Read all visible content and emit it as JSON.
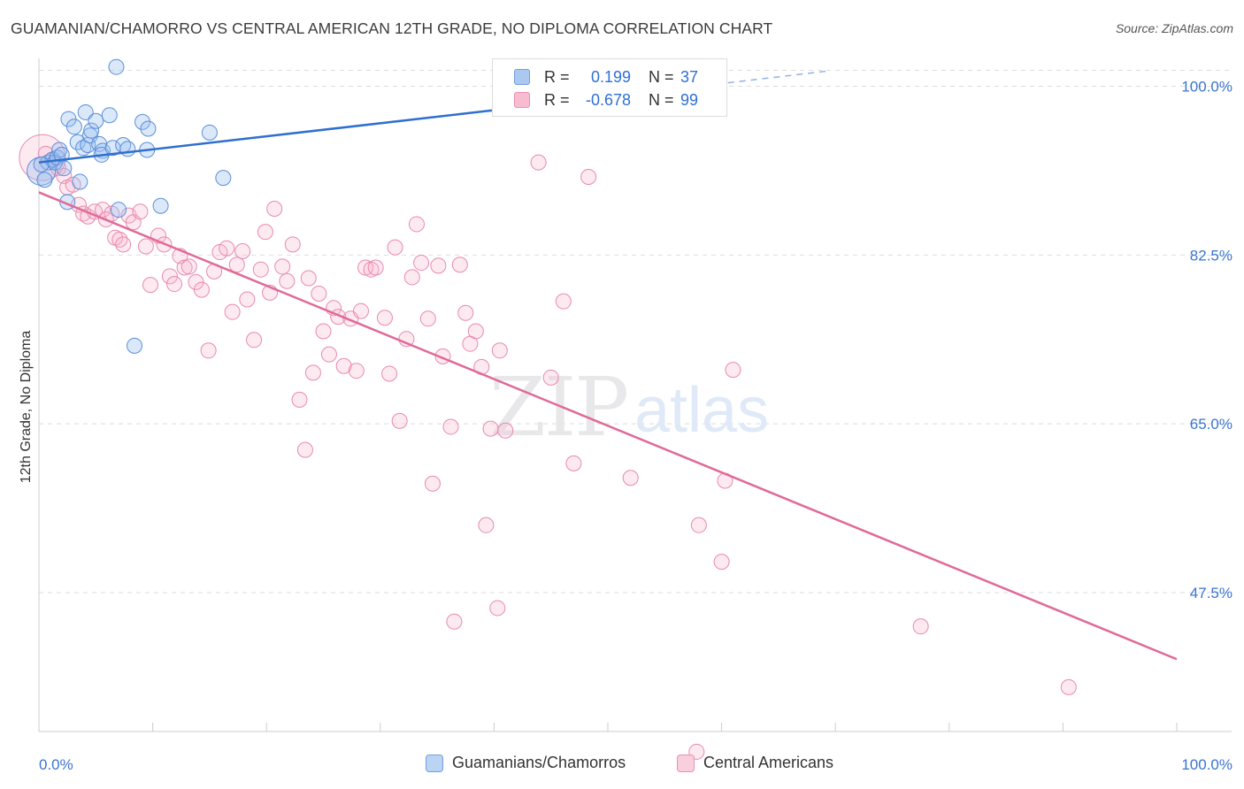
{
  "title": "GUAMANIAN/CHAMORRO VS CENTRAL AMERICAN 12TH GRADE, NO DIPLOMA CORRELATION CHART",
  "source": "Source: ZipAtlas.com",
  "watermark": {
    "zip": "ZIP",
    "atlas": "atlas"
  },
  "legend": {
    "rows": [
      {
        "r_label": "R =",
        "r_value": "0.199",
        "n_label": "N =",
        "n_value": "37",
        "color": "#aac8f0",
        "border": "#6f9fe0"
      },
      {
        "r_label": "R =",
        "r_value": "-0.678",
        "n_label": "N =",
        "n_value": "99",
        "color": "#f7bcd0",
        "border": "#ec8fb0"
      }
    ]
  },
  "bottom_legend": [
    {
      "label": "Guamanians/Chamorros",
      "color": "#bcd4f4",
      "border": "#6f9fe0"
    },
    {
      "label": "Central Americans",
      "color": "#f9cfde",
      "border": "#ec8fb0"
    }
  ],
  "colors": {
    "blue_fill": "rgba(150,190,240,0.35)",
    "blue_stroke": "#5b8fd8",
    "blue_line": "#2f6fcf",
    "pink_fill": "rgba(247,180,204,0.28)",
    "pink_stroke": "#e889ad",
    "pink_line": "#e06a98",
    "axis_label": "#3a74d0",
    "grid": "#dddddd"
  },
  "chart_data": {
    "type": "scatter",
    "title": "GUAMANIAN/CHAMORRO VS CENTRAL AMERICAN 12TH GRADE, NO DIPLOMA CORRELATION CHART",
    "xlabel": "",
    "ylabel": "12th Grade, No Diploma",
    "xlim": [
      0,
      100
    ],
    "ylim": [
      31,
      102
    ],
    "x_tick_labels": [
      "0.0%",
      "100.0%"
    ],
    "y_ticks": [
      100.0,
      82.5,
      65.0,
      47.5
    ],
    "y_tick_labels": [
      "100.0%",
      "82.5%",
      "65.0%",
      "47.5%"
    ],
    "grid": true,
    "legend_placement": "top-center",
    "series": [
      {
        "name": "Guamanians/Chamorros",
        "R": 0.199,
        "N": 37,
        "trend": {
          "x": [
            0,
            46.5
          ],
          "y": [
            92.1,
            98.4
          ],
          "dashed_to": [
            69.5,
            101.6
          ]
        },
        "points": [
          [
            0.5,
            90.3
          ],
          [
            0.8,
            92.1
          ],
          [
            1.2,
            92.4
          ],
          [
            1.4,
            92.1
          ],
          [
            1.6,
            92.6
          ],
          [
            1.8,
            93.4
          ],
          [
            2.0,
            92.9
          ],
          [
            2.2,
            91.5
          ],
          [
            2.5,
            88.0
          ],
          [
            2.6,
            96.6
          ],
          [
            3.1,
            95.8
          ],
          [
            3.4,
            94.2
          ],
          [
            3.6,
            90.1
          ],
          [
            3.9,
            93.6
          ],
          [
            4.1,
            97.3
          ],
          [
            4.3,
            93.9
          ],
          [
            4.5,
            94.9
          ],
          [
            4.6,
            95.4
          ],
          [
            5.0,
            96.4
          ],
          [
            5.3,
            94.0
          ],
          [
            5.6,
            93.3
          ],
          [
            5.5,
            92.9
          ],
          [
            6.2,
            97.0
          ],
          [
            6.5,
            93.6
          ],
          [
            6.8,
            102.0
          ],
          [
            7.0,
            87.2
          ],
          [
            7.4,
            93.9
          ],
          [
            7.8,
            93.5
          ],
          [
            8.4,
            73.1
          ],
          [
            9.1,
            96.3
          ],
          [
            9.6,
            95.6
          ],
          [
            9.5,
            93.4
          ],
          [
            10.7,
            87.6
          ],
          [
            15.0,
            95.2
          ],
          [
            16.2,
            90.5
          ],
          [
            47.6,
            102.0
          ],
          [
            0.2,
            91.9
          ]
        ]
      },
      {
        "name": "Central Americans",
        "R": -0.678,
        "N": 99,
        "trend": {
          "x": [
            0,
            100
          ],
          "y": [
            89.0,
            40.6
          ]
        },
        "points": [
          [
            0.6,
            93.0
          ],
          [
            1.2,
            92.4
          ],
          [
            1.7,
            91.5
          ],
          [
            2.2,
            90.7
          ],
          [
            2.5,
            89.5
          ],
          [
            3.0,
            89.8
          ],
          [
            3.5,
            87.7
          ],
          [
            3.9,
            86.8
          ],
          [
            4.3,
            86.5
          ],
          [
            4.9,
            87.0
          ],
          [
            5.6,
            87.2
          ],
          [
            5.9,
            86.2
          ],
          [
            6.4,
            86.8
          ],
          [
            6.7,
            84.3
          ],
          [
            7.1,
            84.1
          ],
          [
            7.4,
            83.6
          ],
          [
            7.9,
            86.6
          ],
          [
            8.3,
            85.9
          ],
          [
            8.9,
            87.0
          ],
          [
            9.4,
            83.4
          ],
          [
            9.8,
            79.4
          ],
          [
            10.5,
            84.5
          ],
          [
            11.0,
            83.6
          ],
          [
            11.5,
            80.3
          ],
          [
            11.9,
            79.5
          ],
          [
            12.4,
            82.4
          ],
          [
            12.8,
            81.2
          ],
          [
            13.2,
            81.3
          ],
          [
            13.8,
            79.7
          ],
          [
            14.3,
            78.9
          ],
          [
            14.9,
            72.6
          ],
          [
            15.4,
            80.8
          ],
          [
            15.9,
            82.8
          ],
          [
            16.5,
            83.2
          ],
          [
            17.0,
            76.6
          ],
          [
            17.4,
            81.5
          ],
          [
            17.9,
            82.9
          ],
          [
            18.3,
            77.9
          ],
          [
            18.9,
            73.7
          ],
          [
            19.5,
            81.0
          ],
          [
            19.9,
            84.9
          ],
          [
            20.3,
            78.6
          ],
          [
            20.7,
            87.3
          ],
          [
            21.4,
            81.3
          ],
          [
            21.8,
            79.8
          ],
          [
            22.3,
            83.6
          ],
          [
            22.9,
            67.5
          ],
          [
            23.4,
            62.3
          ],
          [
            23.7,
            80.1
          ],
          [
            24.1,
            70.3
          ],
          [
            24.6,
            78.5
          ],
          [
            25.0,
            74.6
          ],
          [
            25.5,
            72.2
          ],
          [
            25.9,
            77.0
          ],
          [
            26.3,
            76.1
          ],
          [
            26.8,
            71.0
          ],
          [
            27.4,
            75.9
          ],
          [
            27.9,
            70.5
          ],
          [
            28.3,
            76.7
          ],
          [
            28.7,
            81.2
          ],
          [
            29.2,
            81.0
          ],
          [
            29.6,
            81.2
          ],
          [
            30.4,
            76.0
          ],
          [
            30.8,
            70.2
          ],
          [
            31.3,
            83.3
          ],
          [
            31.7,
            65.3
          ],
          [
            32.3,
            73.8
          ],
          [
            32.8,
            80.2
          ],
          [
            33.2,
            85.7
          ],
          [
            33.6,
            81.7
          ],
          [
            34.2,
            75.9
          ],
          [
            34.6,
            58.8
          ],
          [
            35.1,
            81.4
          ],
          [
            35.5,
            72.0
          ],
          [
            36.2,
            64.7
          ],
          [
            36.5,
            44.5
          ],
          [
            37.0,
            81.5
          ],
          [
            37.5,
            76.5
          ],
          [
            37.9,
            73.3
          ],
          [
            38.4,
            74.6
          ],
          [
            38.9,
            70.9
          ],
          [
            39.3,
            54.5
          ],
          [
            39.7,
            64.5
          ],
          [
            40.3,
            45.9
          ],
          [
            40.5,
            72.6
          ],
          [
            41.0,
            64.3
          ],
          [
            43.9,
            92.1
          ],
          [
            45.0,
            69.8
          ],
          [
            46.1,
            77.7
          ],
          [
            47.0,
            60.9
          ],
          [
            48.3,
            90.6
          ],
          [
            52.0,
            59.4
          ],
          [
            57.8,
            31.0
          ],
          [
            58.0,
            54.5
          ],
          [
            60.0,
            50.7
          ],
          [
            60.3,
            59.1
          ],
          [
            61.0,
            70.6
          ],
          [
            77.5,
            44.0
          ],
          [
            90.5,
            37.7
          ]
        ]
      }
    ]
  }
}
